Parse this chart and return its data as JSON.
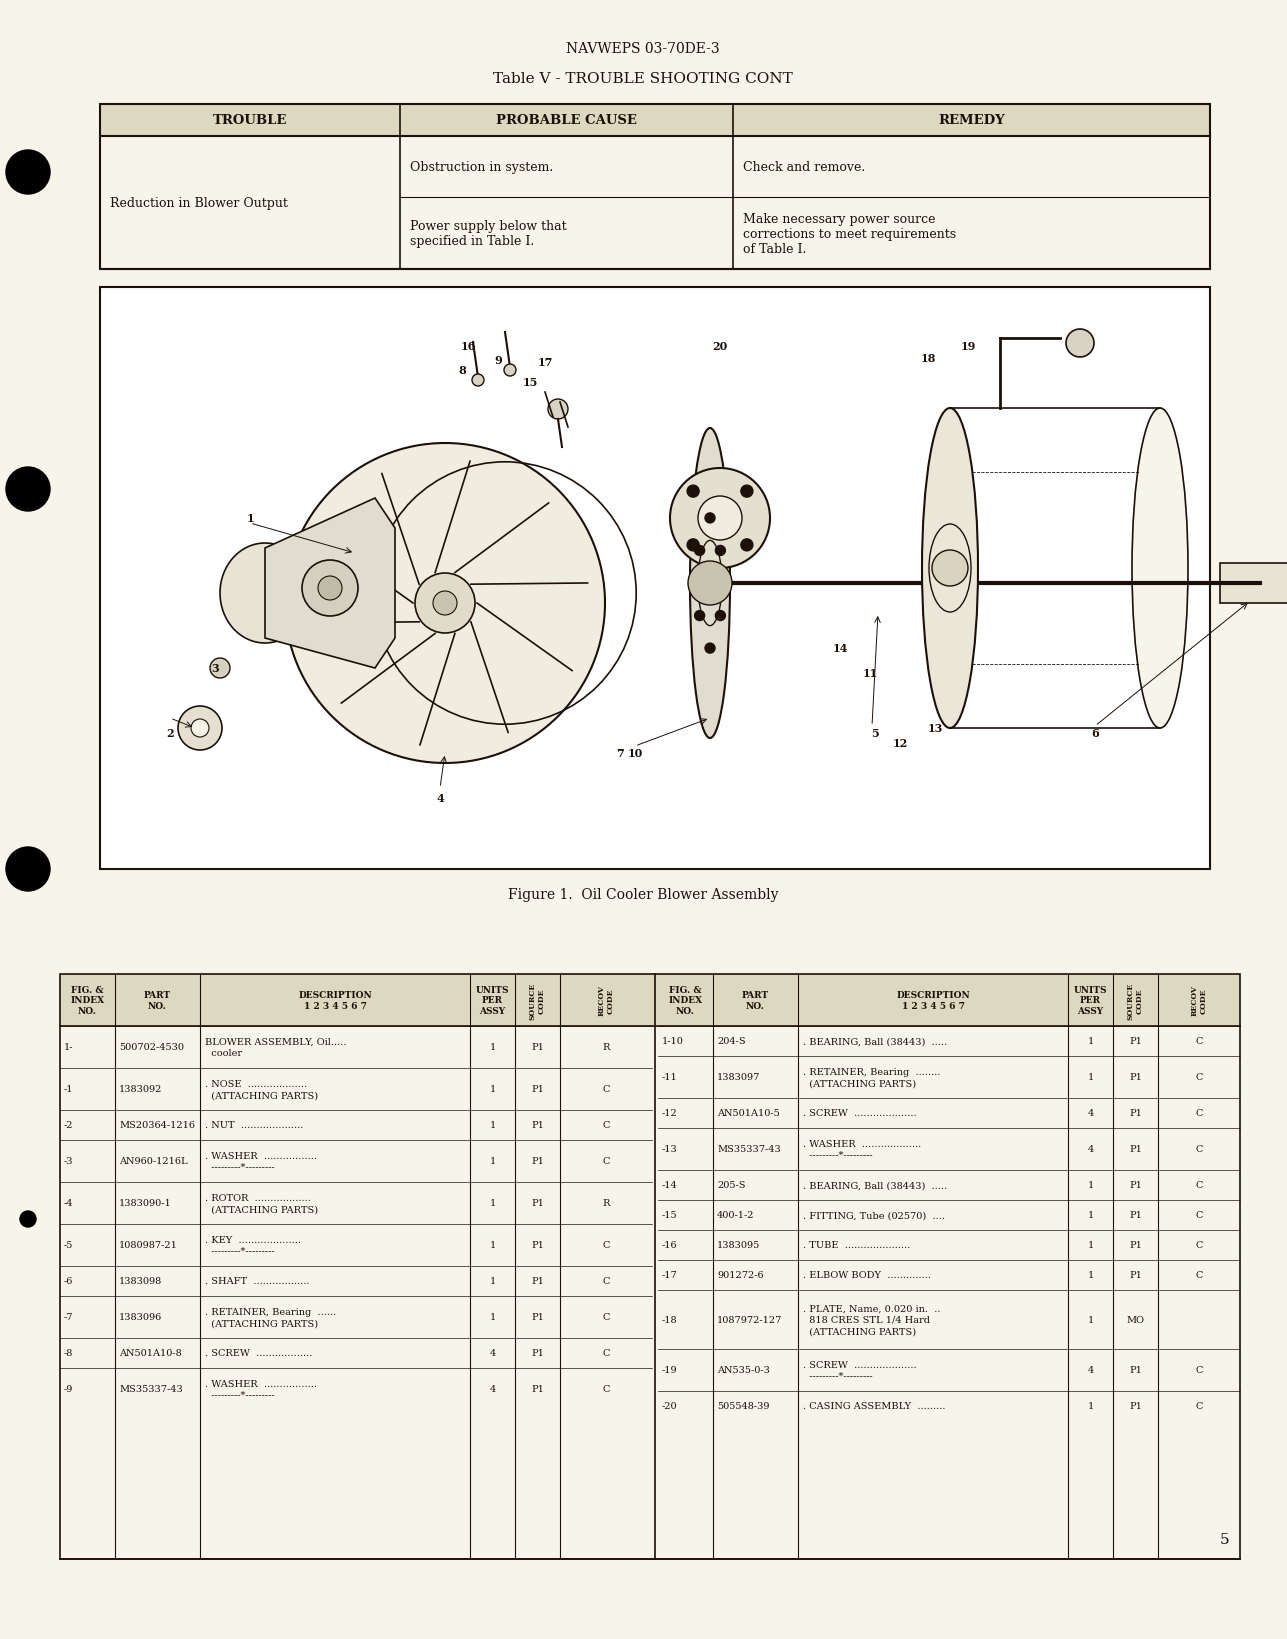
{
  "page_bg": "#f7f4ea",
  "header": "NAVWEPS 03-70DE-3",
  "table_title": "Table V - TROUBLE SHOOTING CONT",
  "col_headers": [
    "TROUBLE",
    "PROBABLE CAUSE",
    "REMEDY"
  ],
  "row1_trouble": "Reduction in Blower Output",
  "row1_cause": "Obstruction in system.",
  "row1_remedy": "Check and remove.",
  "row2_cause": "Power supply below that\nspecified in Table I.",
  "row2_remedy": "Make necessary power source\ncorrections to meet requirements\nof Table I.",
  "fig_caption": "Figure 1.  Oil Cooler Blower Assembly",
  "page_num": "5",
  "tc": "#1c1008",
  "pt_rows_left": [
    [
      "1-",
      "500702-4530",
      "BLOWER ASSEMBLY, Oil.....\n  cooler",
      "1",
      "P1",
      "R"
    ],
    [
      "-1",
      "1383092",
      ". NOSE  ...................\n  (ATTACHING PARTS)",
      "1",
      "P1",
      "C"
    ],
    [
      "-2",
      "MS20364-1216",
      ". NUT  ....................",
      "1",
      "P1",
      "C"
    ],
    [
      "-3",
      "AN960-1216L",
      ". WASHER  .................\n  ---------*---------",
      "1",
      "P1",
      "C"
    ],
    [
      "-4",
      "1383090-1",
      ". ROTOR  ..................\n  (ATTACHING PARTS)",
      "1",
      "P1",
      "R"
    ],
    [
      "-5",
      "1080987-21",
      ". KEY  ....................\n  ---------*---------",
      "1",
      "P1",
      "C"
    ],
    [
      "-6",
      "1383098",
      ". SHAFT  ..................",
      "1",
      "P1",
      "C"
    ],
    [
      "-7",
      "1383096",
      ". RETAINER, Bearing  ......\n  (ATTACHING PARTS)",
      "1",
      "P1",
      "C"
    ],
    [
      "-8",
      "AN501A10-8",
      ". SCREW  ..................",
      "4",
      "P1",
      "C"
    ],
    [
      "-9",
      "MS35337-43",
      ". WASHER  .................\n  ---------*---------",
      "4",
      "P1",
      "C"
    ]
  ],
  "pt_rows_right": [
    [
      "1-10",
      "204-S",
      ". BEARING, Ball (38443)  .....",
      "1",
      "P1",
      "C"
    ],
    [
      "-11",
      "1383097",
      ". RETAINER, Bearing  ........\n  (ATTACHING PARTS)",
      "1",
      "P1",
      "C"
    ],
    [
      "-12",
      "AN501A10-5",
      ". SCREW  ....................",
      "4",
      "P1",
      "C"
    ],
    [
      "-13",
      "MS35337-43",
      ". WASHER  ...................\n  ---------*---------",
      "4",
      "P1",
      "C"
    ],
    [
      "-14",
      "205-S",
      ". BEARING, Ball (38443)  .....",
      "1",
      "P1",
      "C"
    ],
    [
      "-15",
      "400-1-2",
      ". FITTING, Tube (02570)  ....",
      "1",
      "P1",
      "C"
    ],
    [
      "-16",
      "1383095",
      ". TUBE  .....................",
      "1",
      "P1",
      "C"
    ],
    [
      "-17",
      "901272-6",
      ". ELBOW BODY  ..............",
      "1",
      "P1",
      "C"
    ],
    [
      "-18",
      "1087972-127",
      ". PLATE, Name, 0.020 in.  ..\n  818 CRES STL 1/4 Hard\n  (ATTACHING PARTS)",
      "1",
      "MO",
      ""
    ],
    [
      "-19",
      "AN535-0-3",
      ". SCREW  ....................\n  ---------*---------",
      "4",
      "P1",
      "C"
    ],
    [
      "-20",
      "505548-39",
      ". CASING ASSEMBLY  .........",
      "1",
      "P1",
      "C"
    ]
  ]
}
